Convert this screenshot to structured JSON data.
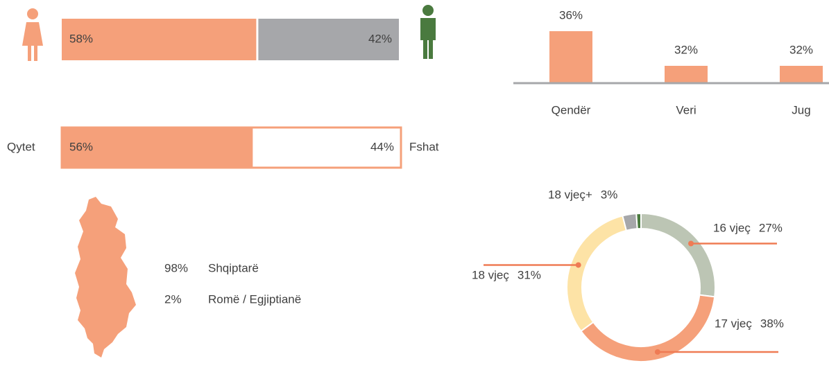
{
  "chart_data": [
    {
      "type": "split-bar",
      "values": [
        58,
        42
      ],
      "value_labels": [
        "58%",
        "42%"
      ],
      "colors": [
        "#f5a07a",
        "#a6a7aa"
      ]
    },
    {
      "type": "split-bar",
      "categories": [
        "Qytet",
        "Fshat"
      ],
      "values": [
        56,
        44
      ],
      "value_labels": [
        "56%",
        "44%"
      ],
      "colors": [
        "#f5a07a",
        "#ffffff"
      ],
      "border": "#f5a07a"
    },
    {
      "type": "bar",
      "categories": [
        "Qendër",
        "Veri",
        "Jug"
      ],
      "values": [
        36,
        32,
        32
      ],
      "value_labels": [
        "36%",
        "32%",
        "32%"
      ],
      "color": "#f5a07a",
      "ylim": [
        30,
        37
      ]
    },
    {
      "type": "list",
      "categories": [
        "Shqiptarë",
        "Romë / Egjiptianë"
      ],
      "values": [
        98,
        2
      ],
      "value_labels": [
        "98%",
        "2%"
      ]
    },
    {
      "type": "donut",
      "categories": [
        "16 vjeç",
        "17 vjeç",
        "18 vjeç",
        "18 vjeç+",
        null
      ],
      "values": [
        27,
        38,
        31,
        3,
        1
      ],
      "value_labels": [
        "27%",
        "38%",
        "31%",
        "3%",
        null
      ],
      "colors": [
        "#bcc5b4",
        "#f5a07a",
        "#fde3a6",
        "#a6a7aa",
        "#4a7a3f"
      ]
    }
  ]
}
